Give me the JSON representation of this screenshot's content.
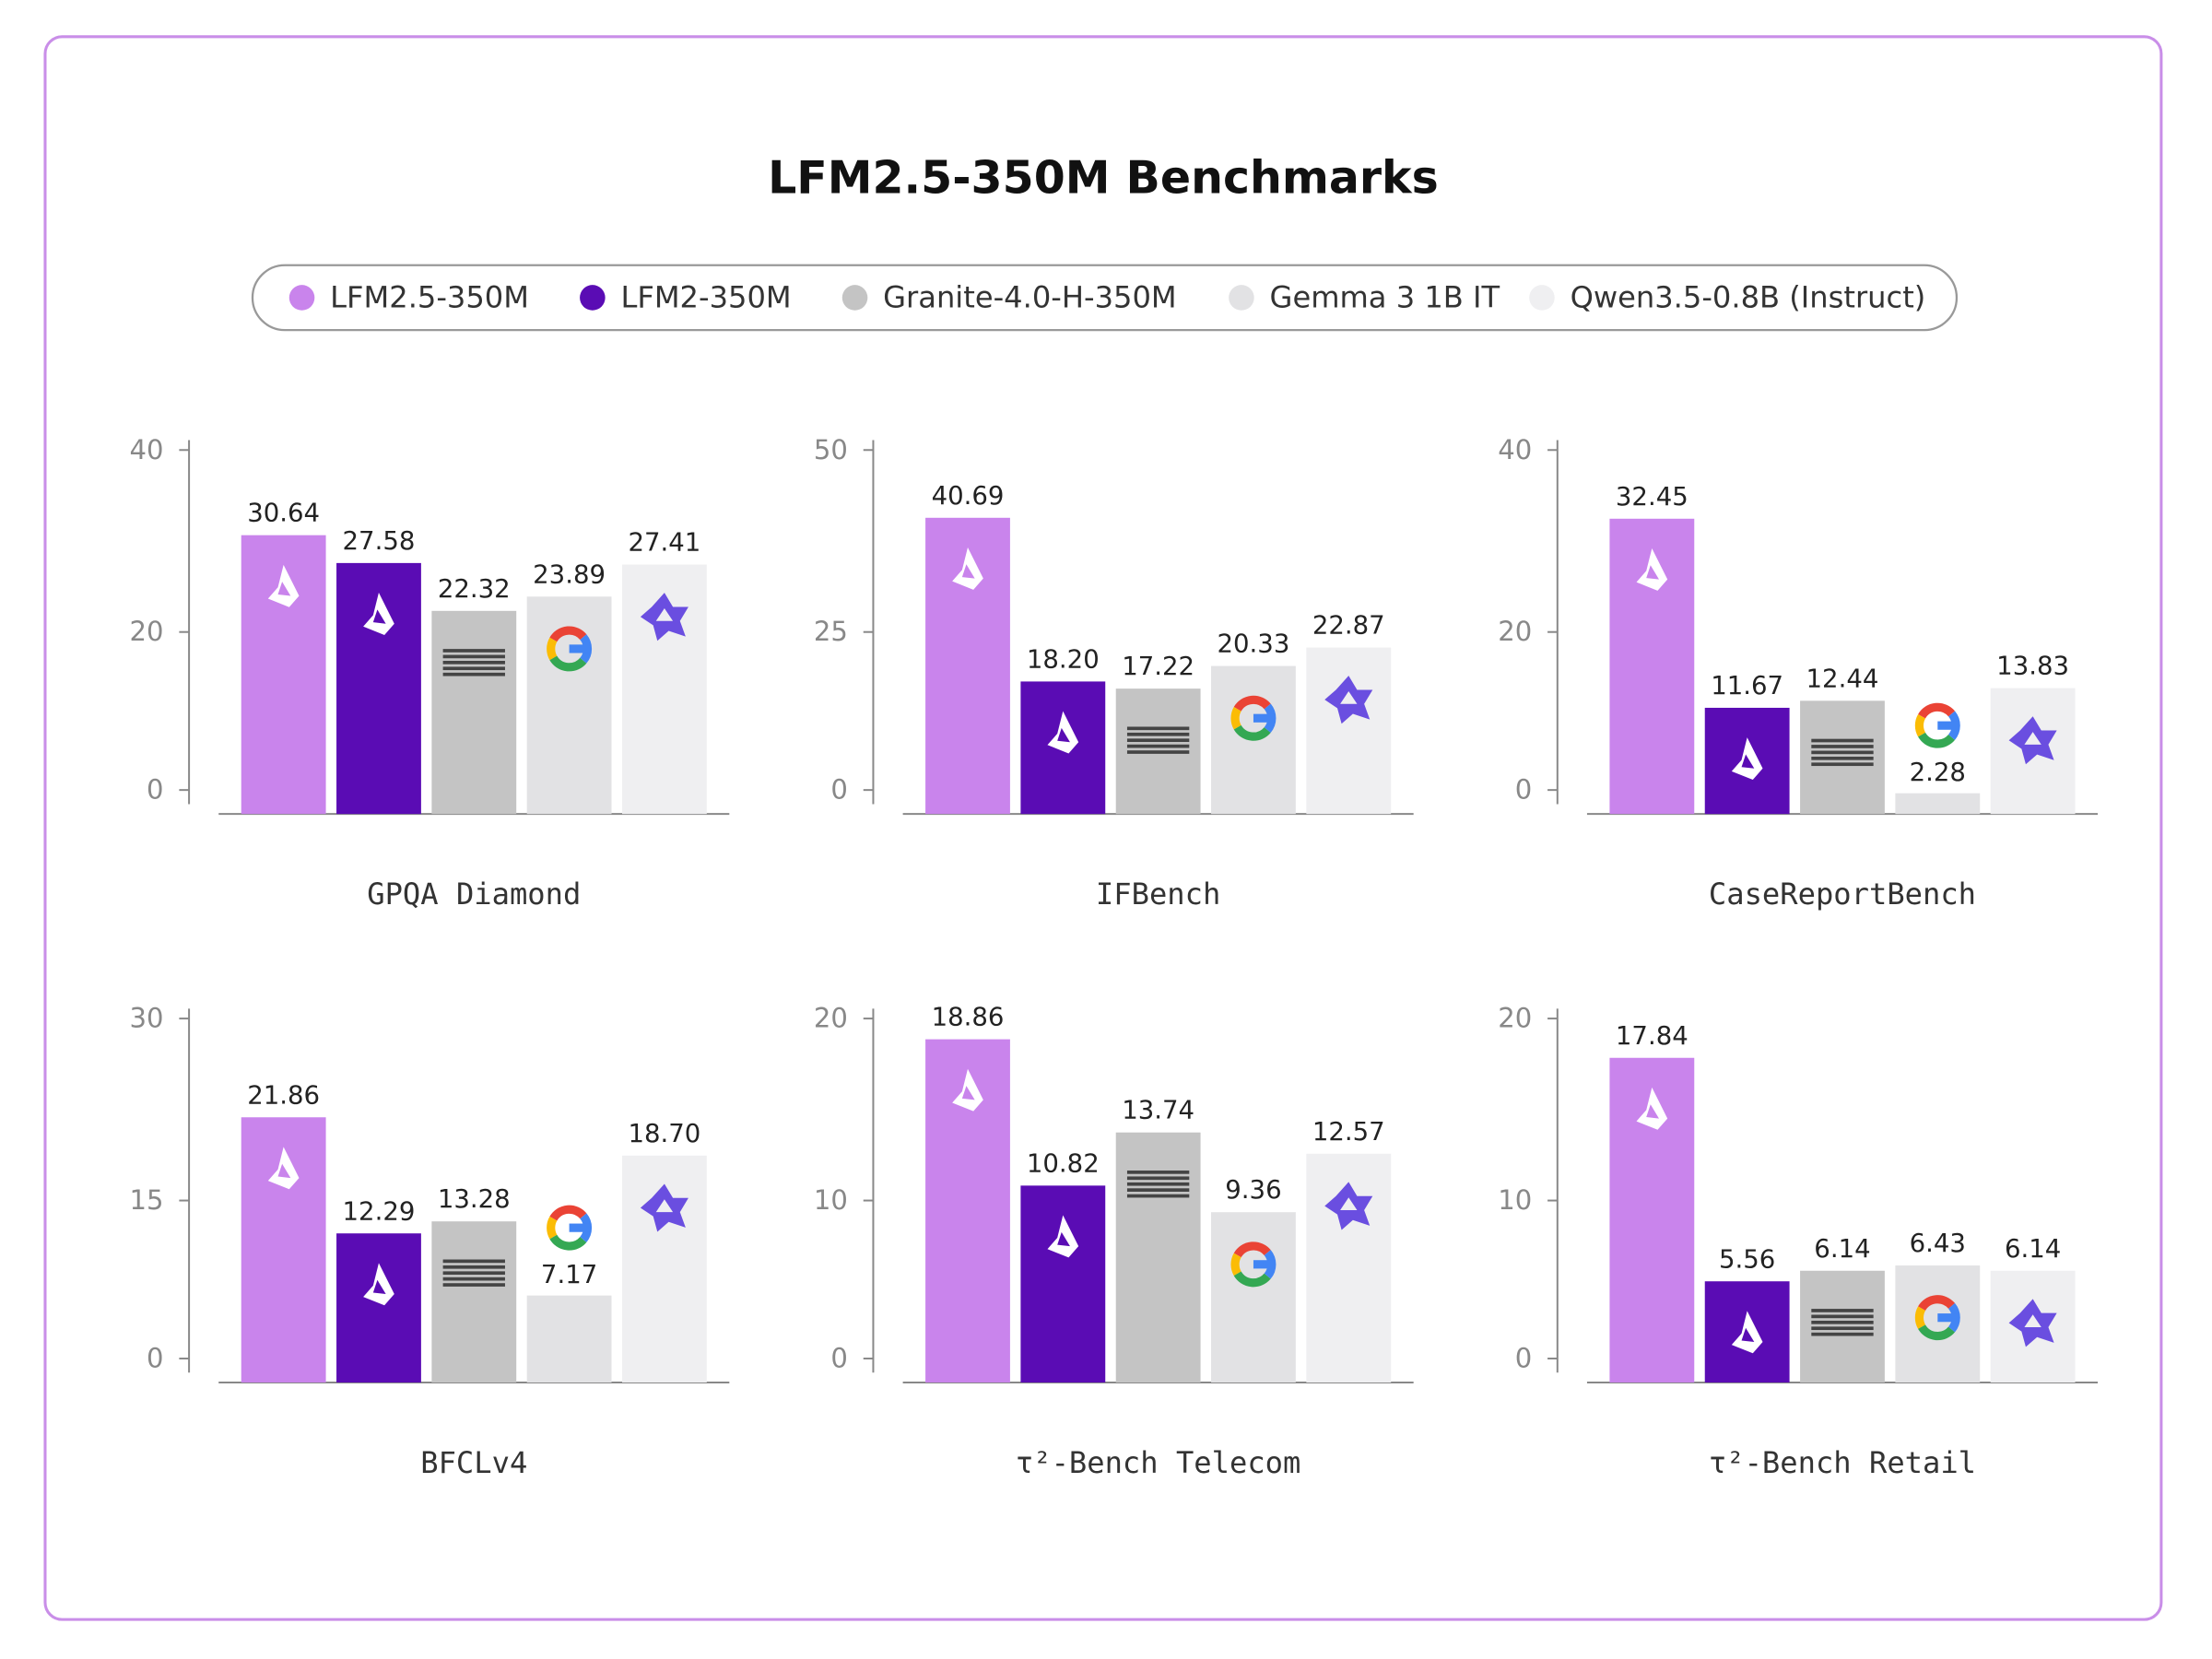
{
  "title": "LFM2.5-350M Benchmarks",
  "legend": [
    {
      "name": "LFM2.5-350M",
      "color": "#c984ec"
    },
    {
      "name": "LFM2-350M",
      "color": "#5a0cb4"
    },
    {
      "name": "Granite-4.0-H-350M",
      "color": "#c4c4c4"
    },
    {
      "name": "Gemma 3 1B IT",
      "color": "#e2e2e4"
    },
    {
      "name": "Qwen3.5-0.8B (Instruct)",
      "color": "#efeff1"
    }
  ],
  "chart_data": [
    {
      "type": "bar",
      "xlabel": "GPQA Diamond",
      "values": [
        30.64,
        27.58,
        22.32,
        23.89,
        27.41
      ],
      "value_labels": [
        "30.64",
        "27.58",
        "22.32",
        "23.89",
        "27.41"
      ],
      "ylim": [
        0,
        40
      ],
      "yticks": [
        0,
        20,
        40
      ]
    },
    {
      "type": "bar",
      "xlabel": "IFBench",
      "values": [
        40.69,
        18.2,
        17.22,
        20.33,
        22.87
      ],
      "value_labels": [
        "40.69",
        "18.20",
        "17.22",
        "20.33",
        "22.87"
      ],
      "ylim": [
        0,
        50
      ],
      "yticks": [
        0,
        25,
        50
      ]
    },
    {
      "type": "bar",
      "xlabel": "CaseReportBench",
      "values": [
        32.45,
        11.67,
        12.44,
        2.28,
        13.83
      ],
      "value_labels": [
        "32.45",
        "11.67",
        "12.44",
        "2.28",
        "13.83"
      ],
      "ylim": [
        0,
        40
      ],
      "yticks": [
        0,
        20,
        40
      ]
    },
    {
      "type": "bar",
      "xlabel": "BFCLv4",
      "values": [
        21.86,
        12.29,
        13.28,
        7.17,
        18.7
      ],
      "value_labels": [
        "21.86",
        "12.29",
        "13.28",
        "7.17",
        "18.70"
      ],
      "ylim": [
        0,
        30
      ],
      "yticks": [
        0,
        15,
        30
      ]
    },
    {
      "type": "bar",
      "xlabel": "τ²-Bench Telecom",
      "values": [
        18.86,
        10.82,
        13.74,
        9.36,
        12.57
      ],
      "value_labels": [
        "18.86",
        "10.82",
        "13.74",
        "9.36",
        "12.57"
      ],
      "ylim": [
        0,
        20
      ],
      "yticks": [
        0,
        10,
        20
      ]
    },
    {
      "type": "bar",
      "xlabel": "τ²-Bench Retail",
      "values": [
        17.84,
        5.56,
        6.14,
        6.43,
        6.14
      ],
      "value_labels": [
        "17.84",
        "5.56",
        "6.14",
        "6.43",
        "6.14"
      ],
      "ylim": [
        0,
        20
      ],
      "yticks": [
        0,
        10,
        20
      ]
    }
  ]
}
